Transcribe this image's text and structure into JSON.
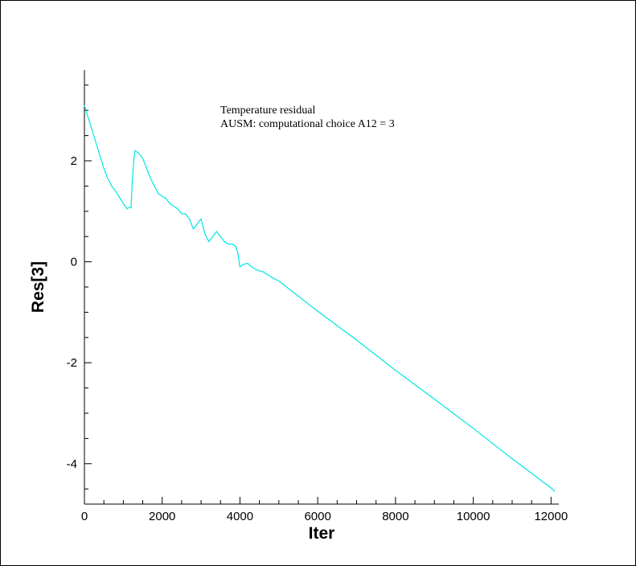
{
  "chart_data": {
    "type": "line",
    "xlabel": "Iter",
    "ylabel": "Res[3]",
    "xlim": [
      0,
      12200
    ],
    "ylim": [
      -4.8,
      3.8
    ],
    "x_ticks": [
      0,
      2000,
      4000,
      6000,
      8000,
      10000,
      12000
    ],
    "y_ticks": [
      -4,
      -2,
      0,
      2
    ],
    "annotations": [
      "Temperature residual",
      "AUSM: computational choice A12 = 3"
    ],
    "line_color": "#00e5e5",
    "series": [
      {
        "x": [
          0,
          100,
          200,
          300,
          400,
          500,
          600,
          700,
          800,
          900,
          1000,
          1100,
          1150,
          1200,
          1230,
          1280,
          1300,
          1400,
          1500,
          1600,
          1700,
          1800,
          1900,
          2000,
          2100,
          2200,
          2300,
          2400,
          2500,
          2600,
          2700,
          2800,
          2900,
          3000,
          3100,
          3200,
          3300,
          3400,
          3500,
          3600,
          3700,
          3800,
          3900,
          3950,
          4000,
          4100,
          4200,
          4300,
          4400,
          4500,
          4600,
          4700,
          4800,
          5000,
          6000,
          7000,
          8000,
          9000,
          10000,
          11000,
          12000,
          12100
        ],
        "y": [
          3.1,
          2.85,
          2.6,
          2.35,
          2.1,
          1.85,
          1.65,
          1.5,
          1.4,
          1.28,
          1.15,
          1.05,
          1.08,
          1.07,
          1.6,
          2.1,
          2.2,
          2.15,
          2.05,
          1.85,
          1.65,
          1.5,
          1.35,
          1.3,
          1.25,
          1.15,
          1.1,
          1.05,
          0.95,
          0.95,
          0.85,
          0.65,
          0.75,
          0.85,
          0.55,
          0.4,
          0.5,
          0.6,
          0.5,
          0.4,
          0.35,
          0.35,
          0.3,
          0.15,
          -0.1,
          -0.05,
          -0.03,
          -0.1,
          -0.15,
          -0.18,
          -0.2,
          -0.25,
          -0.3,
          -0.38,
          -0.98,
          -1.55,
          -2.15,
          -2.72,
          -3.3,
          -3.9,
          -4.48,
          -4.55
        ]
      }
    ]
  }
}
